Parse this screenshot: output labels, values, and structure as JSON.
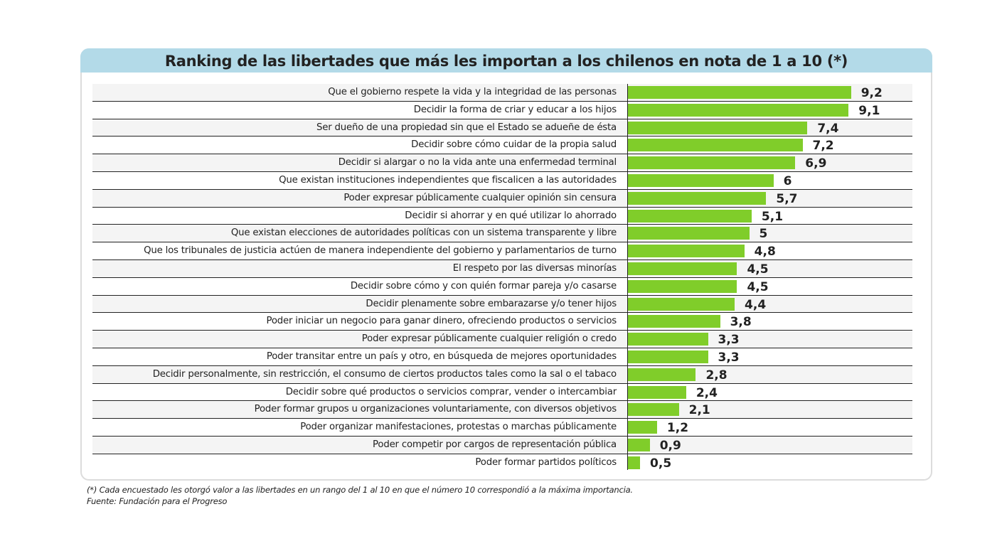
{
  "chart_data": {
    "type": "bar",
    "orientation": "horizontal",
    "title": "Ranking de las libertades que más les importan a los chilenos en nota de 1 a 10 (*)",
    "xlim": [
      0,
      10
    ],
    "bar_color": "#80cd2a",
    "header_color": "#b3dae8",
    "categories": [
      "Que el gobierno respete la vida y la integridad de las personas",
      "Decidir la forma de criar y educar a los hijos",
      "Ser dueño de una propiedad sin que el Estado se adueñe de ésta",
      "Decidir sobre cómo cuidar de la propia salud",
      "Decidir si alargar o no la vida ante una enfermedad terminal",
      "Que existan instituciones independientes que fiscalicen a las autoridades",
      "Poder expresar públicamente cualquier opinión sin censura",
      "Decidir si ahorrar y en qué utilizar lo ahorrado",
      "Que existan elecciones de autoridades políticas con un sistema transparente y libre",
      "Que los tribunales de justicia actúen de manera independiente del gobierno y parlamentarios de turno",
      "El respeto por las diversas minorías",
      "Decidir sobre cómo y con quién formar pareja y/o casarse",
      "Decidir plenamente sobre embarazarse y/o tener hijos",
      "Poder iniciar un negocio para ganar dinero, ofreciendo productos o servicios",
      "Poder expresar públicamente cualquier religión o credo",
      "Poder transitar entre un país y otro, en búsqueda de mejores oportunidades",
      "Decidir personalmente, sin restricción, el consumo de ciertos productos tales como la sal o el tabaco",
      "Decidir sobre qué productos o servicios comprar, vender o intercambiar",
      "Poder formar grupos u organizaciones voluntariamente, con diversos objetivos",
      "Poder organizar manifestaciones, protestas o marchas públicamente",
      "Poder competir por cargos de representación pública",
      "Poder formar partidos políticos"
    ],
    "values": [
      9.2,
      9.1,
      7.4,
      7.2,
      6.9,
      6,
      5.7,
      5.1,
      5,
      4.8,
      4.5,
      4.5,
      4.4,
      3.8,
      3.3,
      3.3,
      2.8,
      2.4,
      2.1,
      1.2,
      0.9,
      0.5
    ],
    "value_labels": [
      "9,2",
      "9,1",
      "7,4",
      "7,2",
      "6,9",
      "6",
      "5,7",
      "5,1",
      "5",
      "4,8",
      "4,5",
      "4,5",
      "4,4",
      "3,8",
      "3,3",
      "3,3",
      "2,8",
      "2,4",
      "2,1",
      "1,2",
      "0,9",
      "0,5"
    ]
  },
  "footnote": "(*) Cada encuestado les otorgó valor a las libertades en un rango del 1 al 10 en que el número 10 correspondió a la máxima importancia.",
  "source": "Fuente: Fundación para el Progreso"
}
